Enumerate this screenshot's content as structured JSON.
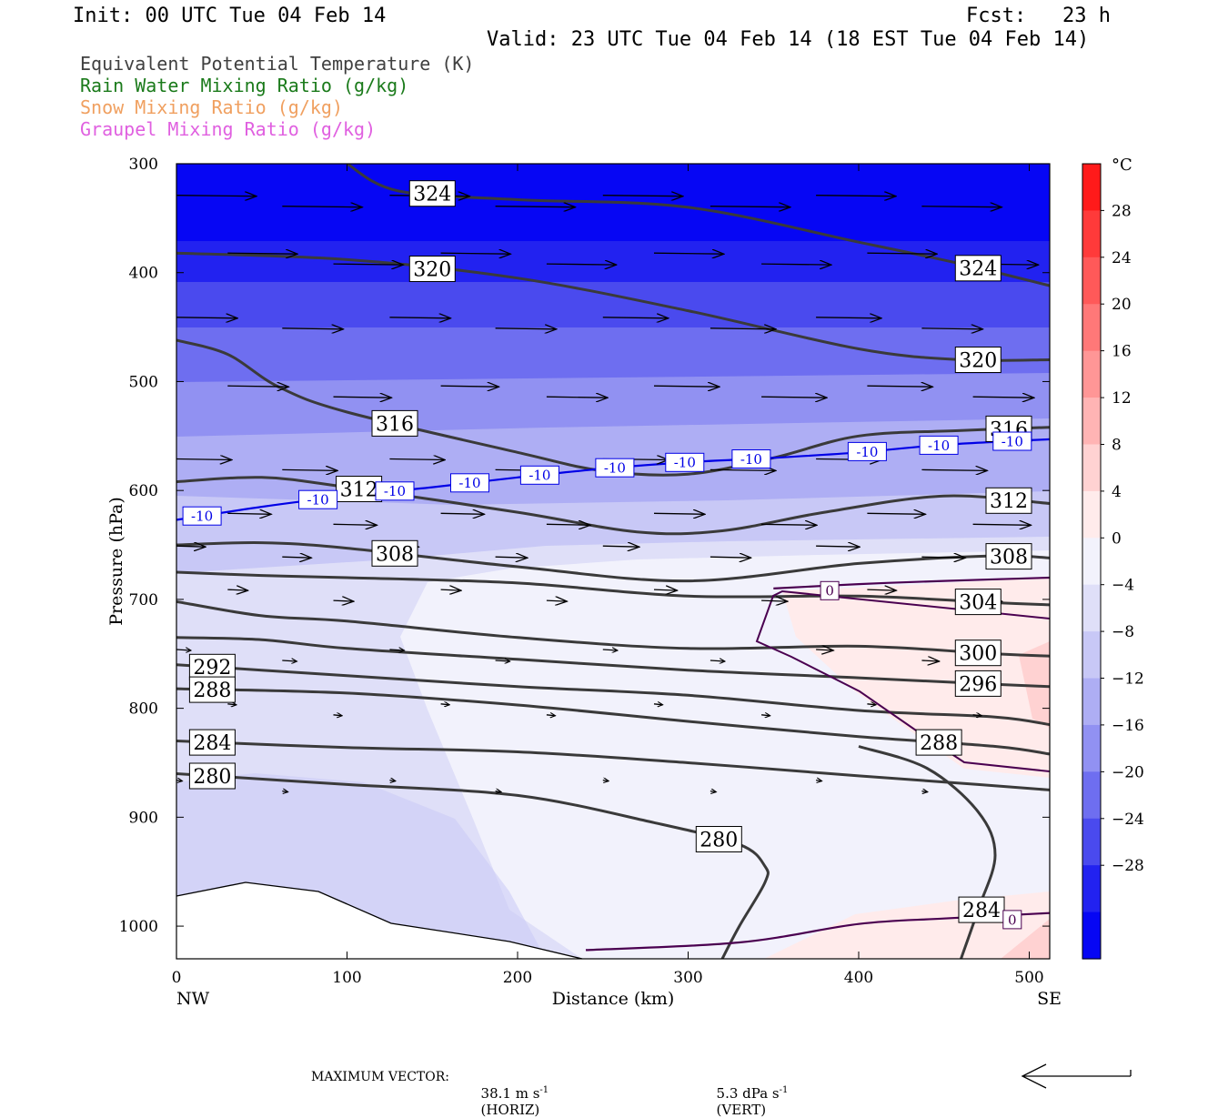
{
  "header": {
    "init": "Init: 00 UTC Tue 04 Feb 14",
    "fcst": "Fcst:   23 h",
    "valid": "Valid: 23 UTC Tue 04 Feb 14 (18 EST Tue 04 Feb 14)"
  },
  "fields": [
    {
      "label": "Equivalent Potential Temperature (K)",
      "color": "#404040"
    },
    {
      "label": "Rain Water Mixing Ratio (g/kg)",
      "color": "#1a7a1a"
    },
    {
      "label": "Snow Mixing Ratio (g/kg)",
      "color": "#f0a060"
    },
    {
      "label": "Graupel Mixing Ratio (g/kg)",
      "color": "#e060e0"
    }
  ],
  "footer": {
    "max_vector_label": "MAXIMUM VECTOR:",
    "horiz_value": "38.1 m s",
    "horiz_unit": "(HORIZ)",
    "vert_value": "5.3 dPa s",
    "vert_unit": "(VERT)",
    "exponent": "-1"
  },
  "chart_data": {
    "type": "cross-section",
    "xlabel": "Distance (km)",
    "ylabel": "Pressure (hPa)",
    "xlim": [
      0,
      512
    ],
    "ylim": [
      1030,
      300
    ],
    "x_ticks": [
      0,
      100,
      200,
      300,
      400,
      500
    ],
    "y_ticks": [
      300,
      400,
      500,
      600,
      700,
      800,
      900,
      1000
    ],
    "x_end_labels": {
      "left": "NW",
      "right": "SE"
    },
    "colorbar": {
      "unit": "°C",
      "tick_labels": [
        "28",
        "24",
        "20",
        "16",
        "12",
        "8",
        "4",
        "0",
        "−4",
        "−8",
        "−12",
        "−16",
        "−20",
        "−24",
        "−28"
      ],
      "levels": [
        32,
        28,
        24,
        20,
        16,
        12,
        8,
        4,
        0,
        -4,
        -8,
        -12,
        -16,
        -20,
        -24,
        -28,
        -32
      ],
      "colors": [
        "#ff1a1a",
        "#ff3a3a",
        "#ff5959",
        "#ff7878",
        "#ff9696",
        "#ffb4b4",
        "#ffd2d2",
        "#ffebeb",
        "#f2f2fc",
        "#dfdff8",
        "#c8c8f6",
        "#aeaef4",
        "#9191f2",
        "#6e6ef0",
        "#4a4aee",
        "#2222f0",
        "#0606f4"
      ]
    },
    "theta_e_contours": [
      {
        "label": "324",
        "points": [
          [
            100,
            300
          ],
          [
            130,
            325
          ],
          [
            200,
            333
          ],
          [
            300,
            340
          ],
          [
            400,
            372
          ],
          [
            460,
            392
          ],
          [
            512,
            412
          ]
        ]
      },
      {
        "label": "320",
        "points": [
          [
            0,
            382
          ],
          [
            100,
            388
          ],
          [
            200,
            405
          ],
          [
            300,
            435
          ],
          [
            400,
            470
          ],
          [
            460,
            480
          ],
          [
            512,
            480
          ]
        ]
      },
      {
        "label": "316",
        "points": [
          [
            0,
            462
          ],
          [
            30,
            475
          ],
          [
            60,
            505
          ],
          [
            100,
            528
          ],
          [
            200,
            565
          ],
          [
            250,
            582
          ],
          [
            300,
            585
          ],
          [
            350,
            570
          ],
          [
            400,
            550
          ],
          [
            460,
            545
          ],
          [
            512,
            542
          ]
        ]
      },
      {
        "label": "312",
        "points": [
          [
            0,
            592
          ],
          [
            50,
            588
          ],
          [
            100,
            597
          ],
          [
            200,
            620
          ],
          [
            270,
            638
          ],
          [
            320,
            637
          ],
          [
            380,
            620
          ],
          [
            450,
            605
          ],
          [
            512,
            612
          ]
        ]
      },
      {
        "label": "308",
        "points": [
          [
            0,
            650
          ],
          [
            50,
            648
          ],
          [
            100,
            653
          ],
          [
            200,
            670
          ],
          [
            300,
            683
          ],
          [
            400,
            667
          ],
          [
            480,
            660
          ],
          [
            512,
            662
          ]
        ]
      },
      {
        "label": "304",
        "points": [
          [
            0,
            675
          ],
          [
            50,
            678
          ],
          [
            100,
            680
          ],
          [
            200,
            685
          ],
          [
            300,
            697
          ],
          [
            400,
            697
          ],
          [
            480,
            703
          ],
          [
            512,
            705
          ]
        ]
      },
      {
        "label": "300",
        "points": [
          [
            0,
            702
          ],
          [
            50,
            715
          ],
          [
            100,
            720
          ],
          [
            200,
            735
          ],
          [
            300,
            745
          ],
          [
            400,
            743
          ],
          [
            480,
            750
          ],
          [
            512,
            752
          ]
        ]
      },
      {
        "label": "296",
        "points": [
          [
            0,
            735
          ],
          [
            50,
            737
          ],
          [
            100,
            745
          ],
          [
            200,
            755
          ],
          [
            300,
            765
          ],
          [
            400,
            772
          ],
          [
            480,
            778
          ],
          [
            512,
            780
          ]
        ]
      },
      {
        "label": "292",
        "points": [
          [
            0,
            760
          ],
          [
            50,
            765
          ],
          [
            100,
            770
          ],
          [
            200,
            780
          ],
          [
            300,
            788
          ],
          [
            400,
            802
          ],
          [
            480,
            808
          ],
          [
            512,
            815
          ]
        ]
      },
      {
        "label": "288",
        "points": [
          [
            0,
            782
          ],
          [
            100,
            786
          ],
          [
            200,
            797
          ],
          [
            300,
            812
          ],
          [
            400,
            826
          ],
          [
            480,
            835
          ],
          [
            512,
            842
          ]
        ]
      },
      {
        "label": "284",
        "points": [
          [
            0,
            830
          ],
          [
            100,
            836
          ],
          [
            200,
            840
          ],
          [
            300,
            850
          ],
          [
            400,
            862
          ],
          [
            470,
            870
          ],
          [
            512,
            875
          ]
        ]
      },
      {
        "label": "280",
        "points": [
          [
            0,
            860
          ],
          [
            100,
            870
          ],
          [
            200,
            880
          ],
          [
            280,
            905
          ],
          [
            330,
            925
          ],
          [
            345,
            945
          ],
          [
            345,
            960
          ],
          [
            330,
            1000
          ],
          [
            320,
            1030
          ]
        ]
      },
      {
        "label": "284",
        "points": [
          [
            400,
            835
          ],
          [
            440,
            855
          ],
          [
            470,
            895
          ],
          [
            480,
            935
          ],
          [
            470,
            985
          ],
          [
            460,
            1030
          ]
        ]
      }
    ],
    "isotherms": [
      {
        "label": "-10",
        "points": [
          [
            0,
            627
          ],
          [
            50,
            615
          ],
          [
            100,
            605
          ],
          [
            150,
            597
          ],
          [
            200,
            588
          ],
          [
            250,
            580
          ],
          [
            300,
            574
          ],
          [
            350,
            570
          ],
          [
            400,
            565
          ],
          [
            450,
            558
          ],
          [
            512,
            553
          ]
        ]
      },
      {
        "label": "0",
        "points": [
          [
            350,
            690
          ],
          [
            400,
            686
          ],
          [
            450,
            683
          ],
          [
            512,
            680
          ]
        ]
      },
      {
        "label": "0",
        "points": [
          [
            240,
            1022
          ],
          [
            330,
            1015
          ],
          [
            400,
            998
          ],
          [
            450,
            993
          ],
          [
            512,
            988
          ]
        ]
      }
    ],
    "labels_texts": {
      "theta": [
        "324",
        "320",
        "316",
        "312",
        "308",
        "304",
        "300",
        "296",
        "292",
        "288",
        "284",
        "280"
      ],
      "iso": [
        "-10",
        "0"
      ]
    }
  }
}
